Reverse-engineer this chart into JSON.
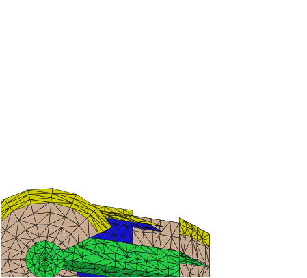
{
  "figsize": [
    4.62,
    4.04
  ],
  "dpi": 100,
  "bg_color": "#ffffff",
  "colors": {
    "yellow": "#CCCC00",
    "tan": "#C8AA90",
    "blue": "#1515CC",
    "green": "#22CC44",
    "dark_green": "#119933",
    "edge": "#111111"
  },
  "seed": 42,
  "lw": 0.4
}
